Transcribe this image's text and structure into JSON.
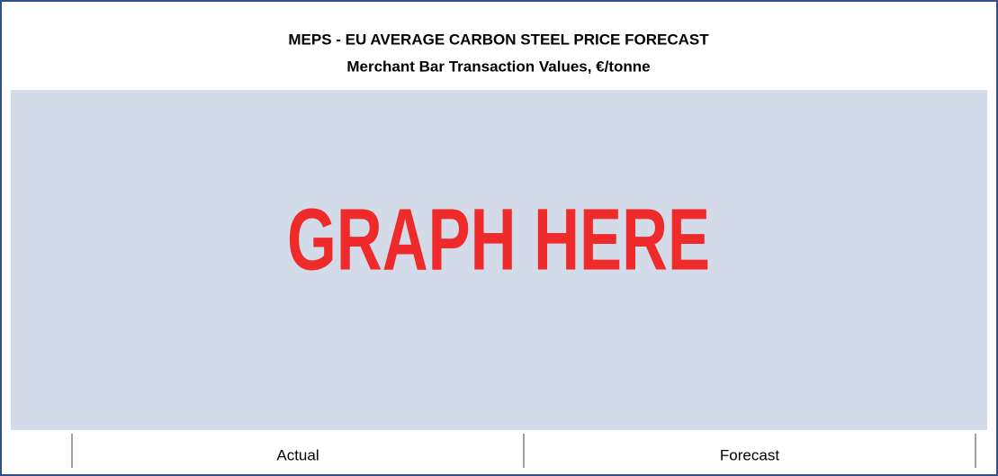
{
  "header": {
    "title": "MEPS - EU AVERAGE CARBON STEEL PRICE FORECAST",
    "subtitle": "Merchant Bar Transaction Values, €/tonne"
  },
  "placeholder": "GRAPH HERE",
  "footer": {
    "labels": [
      "Actual",
      "Forecast"
    ]
  }
}
